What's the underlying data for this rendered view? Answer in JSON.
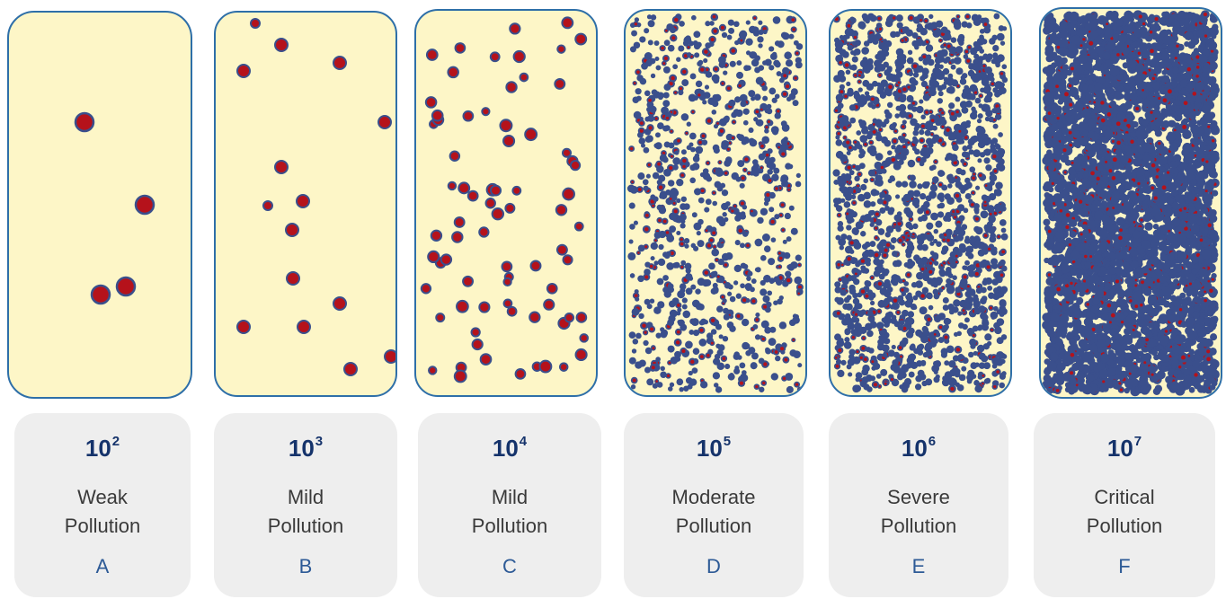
{
  "samples": [
    {
      "base": "10",
      "exponent": "2",
      "level_line1": "Weak",
      "level_line2": "Pollution",
      "letter": "A",
      "density": "very-low"
    },
    {
      "base": "10",
      "exponent": "3",
      "level_line1": "Mild",
      "level_line2": "Pollution",
      "letter": "B",
      "density": "low"
    },
    {
      "base": "10",
      "exponent": "4",
      "level_line1": "Mild",
      "level_line2": "Pollution",
      "letter": "C",
      "density": "medium"
    },
    {
      "base": "10",
      "exponent": "5",
      "level_line1": "Moderate",
      "level_line2": "Pollution",
      "letter": "D",
      "density": "high"
    },
    {
      "base": "10",
      "exponent": "6",
      "level_line1": "Severe",
      "level_line2": "Pollution",
      "letter": "E",
      "density": "very-high"
    },
    {
      "base": "10",
      "exponent": "7",
      "level_line1": "Critical",
      "level_line2": "Pollution",
      "letter": "F",
      "density": "extreme"
    }
  ],
  "colors": {
    "panel_fill": "#fdf6c7",
    "panel_border": "#2e6fa8",
    "particle_red": "#b5121b",
    "particle_blue": "#3a4f8c",
    "card_fill": "#eeeeee",
    "exponent_text": "#15336b",
    "letter_text": "#2d5a96"
  }
}
